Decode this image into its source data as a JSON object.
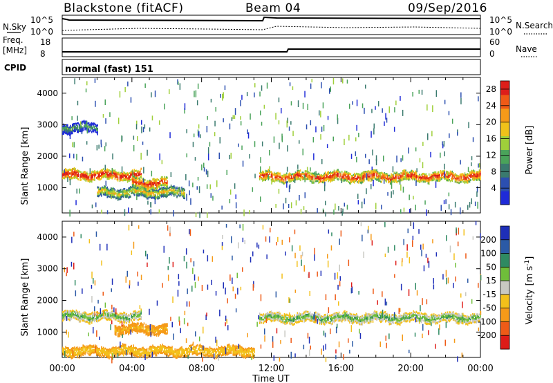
{
  "header": {
    "station": "Blackstone (fitACF)",
    "beam": "Beam 04",
    "date": "09/Sep/2016"
  },
  "nsky_panel": {
    "left_label": "N.Sky",
    "right_label": "N.Search",
    "left_ticks": [
      "10^5",
      "10^0"
    ],
    "right_ticks": [
      "10^5",
      "10^0"
    ]
  },
  "freq_panel": {
    "left_label_1": "Freq.",
    "left_label_2": "[MHz]",
    "right_label": "Nave",
    "left_ticks": [
      "18",
      "8"
    ],
    "right_ticks": [
      "60",
      "0"
    ]
  },
  "cpid_panel": {
    "label": "CPID",
    "value": "normal (fast) 151"
  },
  "colors": {
    "power_scale": [
      "#1f2bd8",
      "#2c4fb0",
      "#3a7a6e",
      "#4aa35a",
      "#9fcf3a",
      "#f0c21a",
      "#f59a18",
      "#ef5a16",
      "#dd1e1a"
    ],
    "velocity_scale": [
      "#1e2fb8",
      "#2b5aa6",
      "#2f8a62",
      "#6fbe3a",
      "#c8c8c2",
      "#f3c01a",
      "#f59a18",
      "#ee5b17",
      "#de1c18"
    ]
  },
  "chart_data": [
    {
      "type": "heatmap",
      "name_shown": "",
      "ylabel": "Slant Range [km]",
      "xlabel": "",
      "y_ticks": [
        1000,
        2000,
        3000,
        4000
      ],
      "ylim": [
        200,
        4500
      ],
      "xlim_hours": [
        0,
        24
      ],
      "colorbar": {
        "label": "Power [dB]",
        "ticks": [
          4,
          8,
          12,
          16,
          20,
          24,
          28
        ],
        "range": [
          0,
          30
        ]
      },
      "features": [
        {
          "t_start": 0.0,
          "t_end": 4.5,
          "range_center": 1400,
          "value": 24
        },
        {
          "t_start": 2.0,
          "t_end": 7.0,
          "range_center": 850,
          "value": 14
        },
        {
          "t_start": 4.0,
          "t_end": 6.0,
          "range_center": 1150,
          "value": 22
        },
        {
          "t_start": 11.3,
          "t_end": 24.0,
          "range_center": 1350,
          "value": 22
        },
        {
          "t_start": 0.0,
          "t_end": 2.0,
          "range_center": 2900,
          "value": 6
        }
      ]
    },
    {
      "type": "heatmap",
      "ylabel": "Slant Range [km]",
      "xlabel": "Time UT",
      "x_tick_labels": [
        "00:00",
        "04:00",
        "08:00",
        "12:00",
        "16:00",
        "20:00",
        "00:00"
      ],
      "y_ticks": [
        1000,
        2000,
        3000,
        4000
      ],
      "ylim": [
        200,
        4500
      ],
      "xlim_hours": [
        0,
        24
      ],
      "colorbar": {
        "label": "Velocity [m s^-1]",
        "ticks": [
          200,
          100,
          50,
          15,
          -15,
          -50,
          -100,
          -200
        ]
      },
      "features": [
        {
          "t_start": 0.0,
          "t_end": 4.5,
          "range_center": 1500,
          "value": 0
        },
        {
          "t_start": 3.0,
          "t_end": 6.0,
          "range_center": 1100,
          "value": -60
        },
        {
          "t_start": 11.3,
          "t_end": 24.0,
          "range_center": 1450,
          "value": 0
        },
        {
          "t_start": 0.0,
          "t_end": 11.0,
          "range_center": 400,
          "value": -40
        }
      ]
    }
  ],
  "labels": {
    "slant_range_top": "Slant Range [km]",
    "slant_range_bottom": "Slant Range [km]",
    "power_label": "Power [dB]",
    "velocity_label": "Velocity",
    "velocity_units": "[m s",
    "velocity_units_sup": "-1",
    "velocity_units_close": "]",
    "time_label": "Time UT"
  }
}
